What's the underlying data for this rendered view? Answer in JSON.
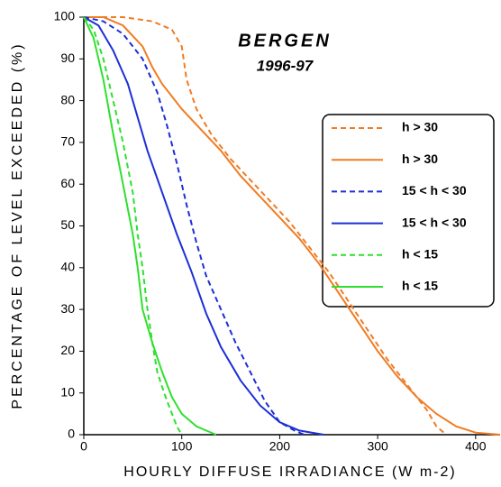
{
  "chart_data": {
    "type": "line",
    "title": "BERGEN",
    "subtitle": "1996-97",
    "xlabel": "HOURLY DIFFUSE IRRADIANCE (W m-2)",
    "ylabel": "PERCENTAGE OF LEVEL EXCEEDED (%)",
    "xlim": [
      0,
      425
    ],
    "ylim": [
      0,
      100
    ],
    "xticks": [
      0,
      100,
      200,
      300,
      400
    ],
    "yticks": [
      0,
      10,
      20,
      30,
      40,
      50,
      60,
      70,
      80,
      90,
      100
    ],
    "legend": "right",
    "series": [
      {
        "name": "h > 30",
        "color": "#f07c24",
        "dashed": true,
        "x": [
          0,
          40,
          70,
          90,
          100,
          105,
          115,
          130,
          150,
          170,
          190,
          210,
          230,
          250,
          270,
          290,
          310,
          330,
          350,
          360,
          370
        ],
        "values": [
          100,
          100,
          99,
          97,
          93,
          85,
          78,
          72,
          66,
          61,
          56,
          51,
          45,
          39,
          32,
          25,
          18,
          12,
          6,
          2,
          0
        ]
      },
      {
        "name": "h > 30",
        "color": "#f07c24",
        "dashed": false,
        "x": [
          0,
          20,
          40,
          60,
          70,
          80,
          100,
          120,
          140,
          160,
          180,
          200,
          220,
          240,
          260,
          280,
          300,
          320,
          340,
          360,
          380,
          400,
          425
        ],
        "values": [
          100,
          100,
          98,
          93,
          88,
          84,
          78,
          73,
          68,
          62,
          57,
          52,
          47,
          41,
          34,
          27,
          20,
          14,
          9,
          5,
          2,
          0.5,
          0
        ]
      },
      {
        "name": "15 < h < 30",
        "color": "#1c2fd6",
        "dashed": true,
        "x": [
          0,
          20,
          40,
          60,
          75,
          85,
          95,
          105,
          115,
          125,
          140,
          155,
          170,
          185,
          200,
          215,
          225
        ],
        "values": [
          100,
          99,
          96,
          90,
          82,
          74,
          65,
          55,
          46,
          38,
          30,
          22,
          15,
          8,
          3,
          1,
          0
        ]
      },
      {
        "name": "15 < h < 30",
        "color": "#1c2fd6",
        "dashed": false,
        "x": [
          0,
          15,
          30,
          45,
          55,
          65,
          80,
          95,
          110,
          125,
          140,
          160,
          180,
          200,
          220,
          245
        ],
        "values": [
          100,
          98,
          92,
          84,
          76,
          68,
          58,
          48,
          39,
          29,
          21,
          13,
          7,
          3,
          1,
          0
        ]
      },
      {
        "name": "h < 15",
        "color": "#2ee02e",
        "dashed": true,
        "x": [
          0,
          10,
          20,
          30,
          40,
          50,
          55,
          60,
          65,
          70,
          75,
          82,
          90,
          95,
          100
        ],
        "values": [
          100,
          97,
          90,
          80,
          70,
          58,
          48,
          40,
          30,
          22,
          15,
          10,
          5,
          2,
          0
        ]
      },
      {
        "name": "h < 15",
        "color": "#2ee02e",
        "dashed": false,
        "x": [
          0,
          10,
          20,
          30,
          40,
          50,
          55,
          60,
          70,
          80,
          90,
          100,
          115,
          125,
          135
        ],
        "values": [
          100,
          95,
          85,
          72,
          60,
          48,
          40,
          30,
          22,
          15,
          9,
          5,
          2,
          1,
          0
        ]
      }
    ]
  }
}
